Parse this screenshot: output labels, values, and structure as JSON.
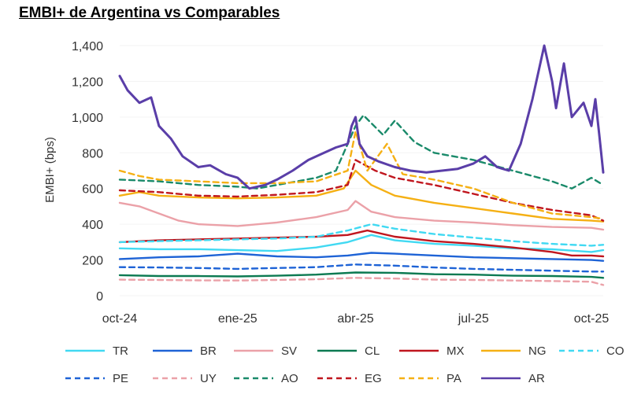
{
  "chart_data": {
    "type": "line",
    "title": "EMBI+ de Argentina vs Comparables",
    "xlabel": "",
    "ylabel": "EMBI+ (bps)",
    "ylim": [
      0,
      1400
    ],
    "yticks": [
      0,
      200,
      400,
      600,
      800,
      1000,
      1200,
      1400
    ],
    "ytick_labels": [
      "0",
      "200",
      "400",
      "600",
      "800",
      "1,000",
      "1,200",
      "1,400"
    ],
    "xlim": [
      0,
      12.3
    ],
    "xticks": [
      0,
      3,
      6,
      9,
      12
    ],
    "xtick_labels": [
      "oct-24",
      "ene-25",
      "abr-25",
      "jul-25",
      "oct-25"
    ],
    "x_unit": "months since oct-24",
    "legend_position": "bottom",
    "series": [
      {
        "name": "TR",
        "color": "#41D9F2",
        "dash": "solid",
        "x": [
          0,
          1,
          2,
          3,
          4,
          5,
          5.8,
          6.4,
          7,
          8,
          9,
          10,
          11,
          12,
          12.3
        ],
        "values": [
          265,
          260,
          260,
          255,
          250,
          270,
          300,
          340,
          310,
          290,
          280,
          265,
          260,
          245,
          255
        ]
      },
      {
        "name": "BR",
        "color": "#1E63D6",
        "dash": "solid",
        "x": [
          0,
          1,
          2,
          3,
          4,
          5,
          5.8,
          6.4,
          7,
          8,
          9,
          10,
          11,
          12,
          12.3
        ],
        "values": [
          205,
          215,
          220,
          235,
          220,
          215,
          225,
          240,
          235,
          225,
          215,
          210,
          205,
          200,
          195
        ]
      },
      {
        "name": "SV",
        "color": "#EBA1A8",
        "dash": "solid",
        "x": [
          0,
          0.5,
          1,
          1.5,
          2,
          3,
          4,
          5,
          5.8,
          6,
          6.4,
          7,
          8,
          9,
          10,
          11,
          12,
          12.3
        ],
        "values": [
          520,
          500,
          460,
          420,
          400,
          390,
          410,
          440,
          480,
          530,
          470,
          440,
          420,
          410,
          395,
          385,
          380,
          370
        ]
      },
      {
        "name": "CL",
        "color": "#0C7A52",
        "dash": "solid",
        "x": [
          0,
          1,
          2,
          3,
          4,
          5,
          6,
          7,
          8,
          9,
          10,
          11,
          12,
          12.3
        ],
        "values": [
          115,
          110,
          110,
          108,
          112,
          118,
          130,
          128,
          120,
          118,
          112,
          110,
          105,
          100
        ]
      },
      {
        "name": "MX",
        "color": "#C0161E",
        "dash": "solid",
        "x": [
          0,
          1,
          2,
          3,
          4,
          5,
          5.8,
          6.3,
          7,
          8,
          9,
          10,
          11,
          11.5,
          12,
          12.3
        ],
        "values": [
          300,
          310,
          315,
          320,
          325,
          330,
          340,
          365,
          330,
          305,
          290,
          270,
          245,
          225,
          225,
          220
        ]
      },
      {
        "name": "NG",
        "color": "#F5B014",
        "dash": "solid",
        "x": [
          0,
          0.5,
          1,
          2,
          3,
          4,
          5,
          5.7,
          6,
          6.4,
          7,
          8,
          9,
          10,
          11,
          12,
          12.3
        ],
        "values": [
          560,
          580,
          560,
          550,
          545,
          550,
          560,
          600,
          700,
          620,
          560,
          520,
          490,
          460,
          430,
          420,
          415
        ]
      },
      {
        "name": "CO",
        "color": "#41D9F2",
        "dash": "dashed",
        "x": [
          0,
          1,
          2,
          3,
          4,
          5,
          5.8,
          6.4,
          7,
          8,
          9,
          10,
          11,
          12,
          12.3
        ],
        "values": [
          300,
          305,
          310,
          315,
          320,
          330,
          365,
          400,
          375,
          345,
          325,
          305,
          290,
          280,
          285
        ]
      },
      {
        "name": "PE",
        "color": "#1E63D6",
        "dash": "dashed",
        "x": [
          0,
          1,
          2,
          3,
          4,
          5,
          6,
          7,
          8,
          9,
          10,
          11,
          12,
          12.3
        ],
        "values": [
          160,
          158,
          155,
          150,
          155,
          160,
          175,
          168,
          158,
          150,
          145,
          140,
          135,
          135
        ]
      },
      {
        "name": "UY",
        "color": "#EBA1A8",
        "dash": "dashed",
        "x": [
          0,
          1,
          2,
          3,
          4,
          5,
          6,
          7,
          8,
          9,
          10,
          11,
          12,
          12.3
        ],
        "values": [
          90,
          88,
          86,
          85,
          88,
          92,
          100,
          96,
          90,
          88,
          85,
          82,
          78,
          60
        ]
      },
      {
        "name": "AO",
        "color": "#1A8A6A",
        "dash": "dashed",
        "x": [
          0,
          1,
          2,
          3,
          3.5,
          4,
          5,
          5.5,
          6,
          6.2,
          6.7,
          7,
          7.5,
          8,
          9,
          10,
          11,
          11.5,
          12,
          12.3
        ],
        "values": [
          650,
          640,
          620,
          610,
          600,
          620,
          660,
          700,
          950,
          1010,
          900,
          980,
          860,
          800,
          760,
          700,
          640,
          600,
          660,
          620
        ]
      },
      {
        "name": "EG",
        "color": "#C0161E",
        "dash": "dashed",
        "x": [
          0,
          1,
          2,
          3,
          4,
          5,
          5.8,
          6,
          6.5,
          7,
          8,
          9,
          10,
          11,
          12,
          12.3
        ],
        "values": [
          590,
          580,
          560,
          555,
          565,
          580,
          620,
          760,
          700,
          660,
          620,
          570,
          520,
          480,
          450,
          420
        ]
      },
      {
        "name": "PA",
        "color": "#F5B014",
        "dash": "dashed",
        "x": [
          0,
          0.5,
          1,
          2,
          3,
          4,
          5,
          5.8,
          6,
          6.3,
          6.8,
          7.2,
          8,
          9,
          10,
          11,
          12,
          12.3
        ],
        "values": [
          700,
          670,
          650,
          640,
          630,
          630,
          640,
          700,
          920,
          700,
          850,
          680,
          650,
          600,
          520,
          460,
          440,
          430
        ]
      },
      {
        "name": "AR",
        "color": "#5A3EA8",
        "dash": "solid",
        "x": [
          0,
          0.2,
          0.5,
          0.8,
          1.0,
          1.3,
          1.6,
          2.0,
          2.3,
          2.7,
          3.0,
          3.3,
          3.7,
          4.0,
          4.4,
          4.8,
          5.2,
          5.5,
          5.8,
          5.9,
          6.0,
          6.1,
          6.3,
          6.6,
          7.0,
          7.4,
          7.8,
          8.2,
          8.6,
          9.0,
          9.3,
          9.6,
          9.9,
          10.2,
          10.5,
          10.8,
          11.0,
          11.1,
          11.3,
          11.5,
          11.8,
          12.0,
          12.1,
          12.2,
          12.3
        ],
        "values": [
          1230,
          1150,
          1080,
          1110,
          950,
          880,
          780,
          720,
          730,
          680,
          660,
          600,
          620,
          650,
          700,
          760,
          800,
          830,
          850,
          950,
          1000,
          850,
          780,
          750,
          720,
          700,
          690,
          700,
          710,
          740,
          780,
          720,
          700,
          850,
          1100,
          1400,
          1200,
          1050,
          1300,
          1000,
          1080,
          950,
          1100,
          900,
          690
        ]
      }
    ]
  }
}
